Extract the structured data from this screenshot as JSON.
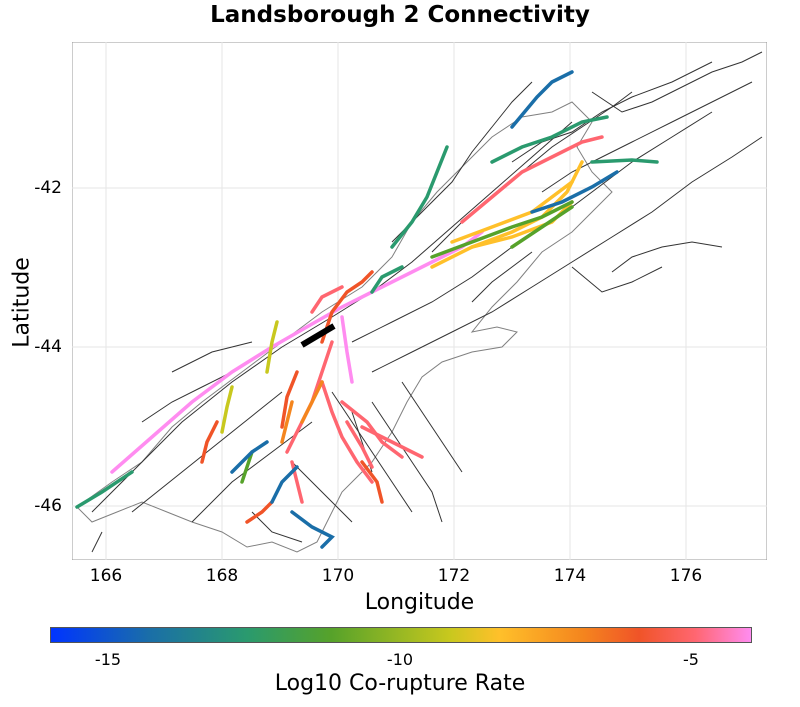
{
  "title": "Landsborough 2 Connectivity",
  "axes": {
    "xlabel": "Longitude",
    "ylabel": "Latitude",
    "xlim": [
      165.5,
      177.5
    ],
    "ylim": [
      -46.7,
      -40.2
    ],
    "xticks": [
      "166",
      "168",
      "170",
      "172",
      "174",
      "176"
    ],
    "yticks": [
      "-42",
      "-44",
      "-46"
    ]
  },
  "colorbar": {
    "label": "Log10 Co-rupture Rate",
    "ticks": [
      "-15",
      "-10",
      "-5"
    ],
    "range": [
      -16,
      -4
    ],
    "colors": [
      "#0034ff",
      "#1a6ea8",
      "#2a9a6e",
      "#56a22a",
      "#c8c81e",
      "#ffc02a",
      "#f4851e",
      "#f05428",
      "#ff6670",
      "#ff8cf0"
    ]
  },
  "map": {
    "coastline_color": "#777777",
    "fault_color": "#333333",
    "source_fault_color": "#000000"
  }
}
